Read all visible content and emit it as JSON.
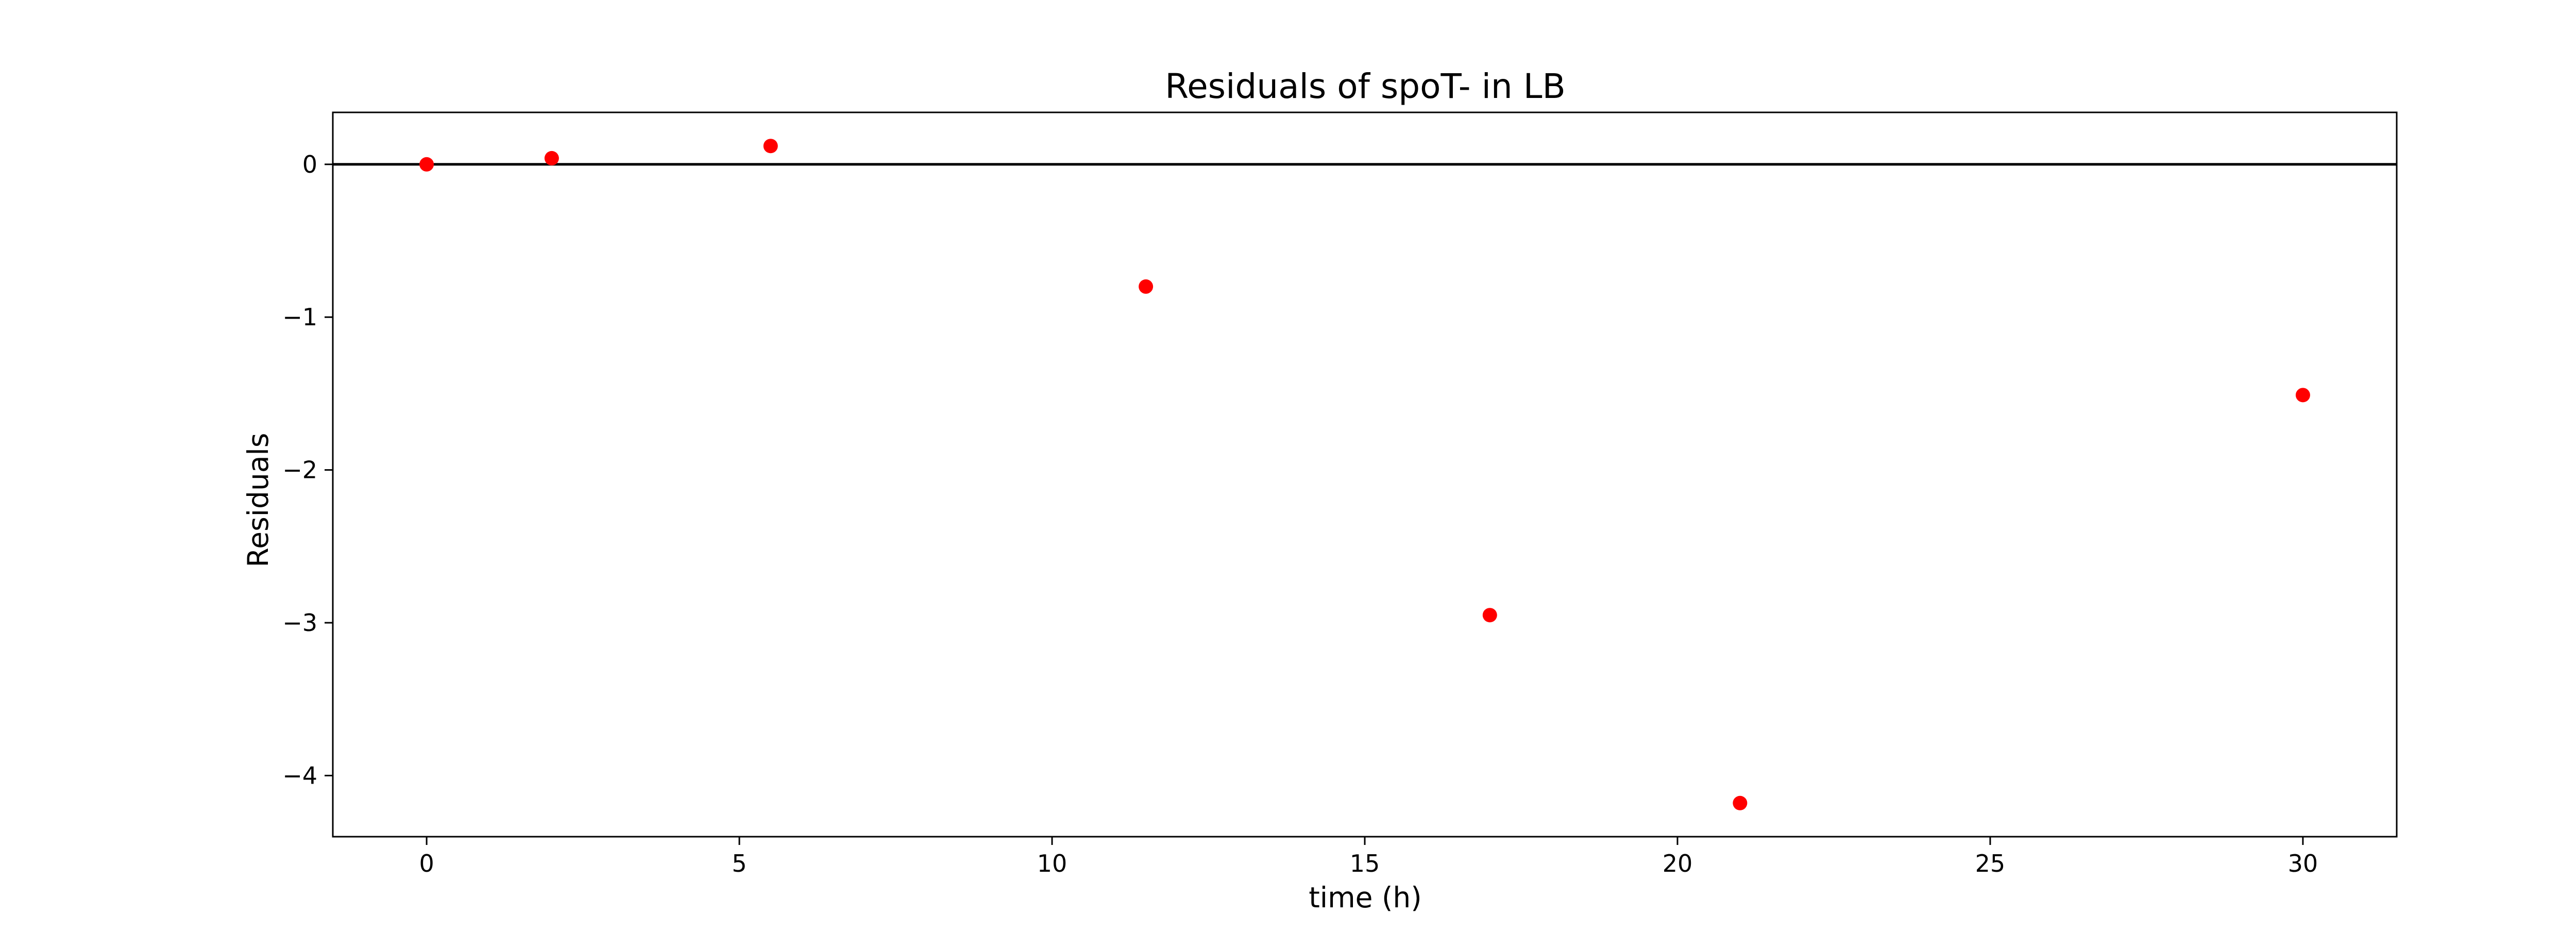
{
  "chart_data": {
    "type": "scatter",
    "title": "Residuals of spoT- in LB",
    "xlabel": "time (h)",
    "ylabel": "Residuals",
    "xlim": [
      -1.5,
      31.5
    ],
    "ylim": [
      -4.4,
      0.34
    ],
    "x_ticks": [
      0,
      5,
      10,
      15,
      20,
      25,
      30
    ],
    "y_ticks": [
      0,
      -1,
      -2,
      -3,
      -4
    ],
    "x_tick_labels": [
      "0",
      "5",
      "10",
      "15",
      "20",
      "25",
      "30"
    ],
    "y_tick_labels": [
      "0",
      "−1",
      "−2",
      "−3",
      "−4"
    ],
    "reference_line_y": 0,
    "grid": false,
    "legend": "none",
    "series": [
      {
        "color": "#ff0000",
        "points": [
          {
            "x": 0,
            "y": 0.0
          },
          {
            "x": 2,
            "y": 0.04
          },
          {
            "x": 5.5,
            "y": 0.12
          },
          {
            "x": 11.5,
            "y": -0.8
          },
          {
            "x": 17,
            "y": -2.95
          },
          {
            "x": 21,
            "y": -4.18
          },
          {
            "x": 30,
            "y": -1.51
          }
        ]
      }
    ]
  }
}
